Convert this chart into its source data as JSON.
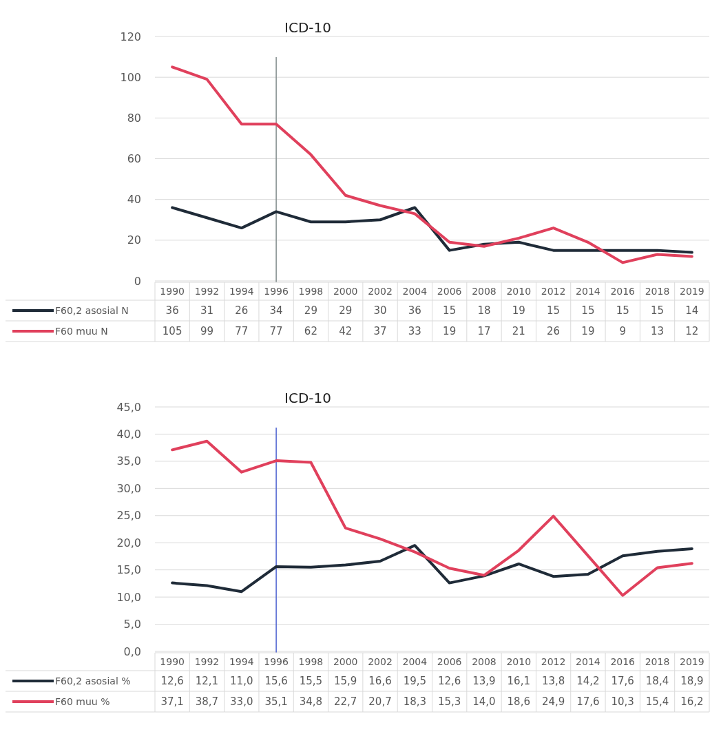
{
  "chart_data": [
    {
      "type": "line",
      "categories": [
        "1990",
        "1992",
        "1994",
        "1996",
        "1998",
        "2000",
        "2002",
        "2004",
        "2006",
        "2008",
        "2010",
        "2012",
        "2014",
        "2016",
        "2018",
        "2019"
      ],
      "series": [
        {
          "name": "F60,2 asosial N",
          "color": "#1f2b38",
          "values": [
            36,
            31,
            26,
            34,
            29,
            29,
            30,
            36,
            15,
            18,
            19,
            15,
            15,
            15,
            15,
            14
          ]
        },
        {
          "name": "F60 muu N",
          "color": "#e0405c",
          "values": [
            105,
            99,
            77,
            77,
            62,
            42,
            37,
            33,
            19,
            17,
            21,
            26,
            19,
            9,
            13,
            12
          ]
        }
      ],
      "ylim": [
        0,
        120
      ],
      "yticks": [
        0,
        20,
        40,
        60,
        80,
        100,
        120
      ],
      "grid": "y",
      "legend": "bottom",
      "data_labels": true,
      "ref_lines": [
        {
          "axis": "x",
          "value": "1996",
          "label": "ICD-10",
          "color": "#7f8a8a"
        }
      ]
    },
    {
      "type": "line",
      "categories": [
        "1990",
        "1992",
        "1994",
        "1996",
        "1998",
        "2000",
        "2002",
        "2004",
        "2006",
        "2008",
        "2010",
        "2012",
        "2014",
        "2016",
        "2018",
        "2019"
      ],
      "series": [
        {
          "name": "F60,2 asosial %",
          "color": "#1f2b38",
          "values": [
            12.6,
            12.1,
            11.0,
            15.6,
            15.5,
            15.9,
            16.6,
            19.5,
            12.6,
            13.9,
            16.1,
            13.8,
            14.2,
            17.6,
            18.4,
            18.9
          ],
          "value_labels": [
            "12,6",
            "12,1",
            "11,0",
            "15,6",
            "15,5",
            "15,9",
            "16,6",
            "19,5",
            "12,6",
            "13,9",
            "16,1",
            "13,8",
            "14,2",
            "17,6",
            "18,4",
            "18,9"
          ]
        },
        {
          "name": "F60 muu %",
          "color": "#e0405c",
          "values": [
            37.1,
            38.7,
            33.0,
            35.1,
            34.8,
            22.7,
            20.7,
            18.3,
            15.3,
            14.0,
            18.6,
            24.9,
            17.6,
            10.3,
            15.4,
            16.2
          ],
          "value_labels": [
            "37,1",
            "38,7",
            "33,0",
            "35,1",
            "34,8",
            "22,7",
            "20,7",
            "18,3",
            "15,3",
            "14,0",
            "18,6",
            "24,9",
            "17,6",
            "10,3",
            "15,4",
            "16,2"
          ]
        }
      ],
      "ylim": [
        0,
        45
      ],
      "yticks": [
        {
          "value": 0,
          "label": "0,0"
        },
        {
          "value": 5,
          "label": "5,0"
        },
        {
          "value": 10,
          "label": "10,0"
        },
        {
          "value": 15,
          "label": "15,0"
        },
        {
          "value": 20,
          "label": "20,0"
        },
        {
          "value": 25,
          "label": "25,0"
        },
        {
          "value": 30,
          "label": "30,0"
        },
        {
          "value": 35,
          "label": "35,0"
        },
        {
          "value": 40,
          "label": "40,0"
        },
        {
          "value": 45,
          "label": "45,0"
        }
      ],
      "grid": "y",
      "legend": "bottom",
      "ref_lines": [
        {
          "axis": "x",
          "value": "1996",
          "label": "ICD-10",
          "color": "#4a5fd0"
        }
      ]
    }
  ]
}
